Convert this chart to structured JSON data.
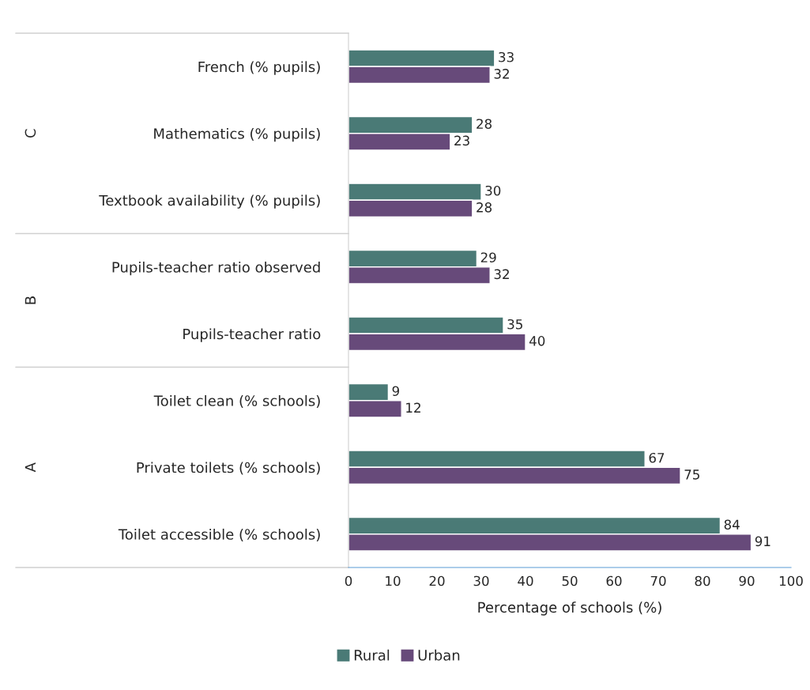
{
  "chart_data": {
    "type": "bar",
    "orientation": "horizontal",
    "xlabel": "Percentage of schools (%)",
    "categories": [
      "French (% pupils)",
      "Mathematics (% pupils)",
      "Textbook availability (% pupils)",
      "Pupils-teacher ratio observed",
      "Pupils-teacher ratio",
      "Toilet clean (% schools)",
      "Private toilets (% schools)",
      "Toilet accessible (% schools)"
    ],
    "series": [
      {
        "name": "Rural",
        "color": "#4a7a76",
        "values": [
          33,
          28,
          30,
          29,
          35,
          9,
          67,
          84
        ]
      },
      {
        "name": "Urban",
        "color": "#674a7a",
        "values": [
          32,
          23,
          28,
          32,
          40,
          12,
          75,
          91
        ]
      }
    ],
    "xlim": [
      0,
      100
    ],
    "xticks": [
      0,
      10,
      20,
      30,
      40,
      50,
      60,
      70,
      80,
      90,
      100
    ],
    "data_labels": true,
    "grid": false,
    "legend": "bottom",
    "annotations": [
      "C",
      "B",
      "A"
    ]
  }
}
